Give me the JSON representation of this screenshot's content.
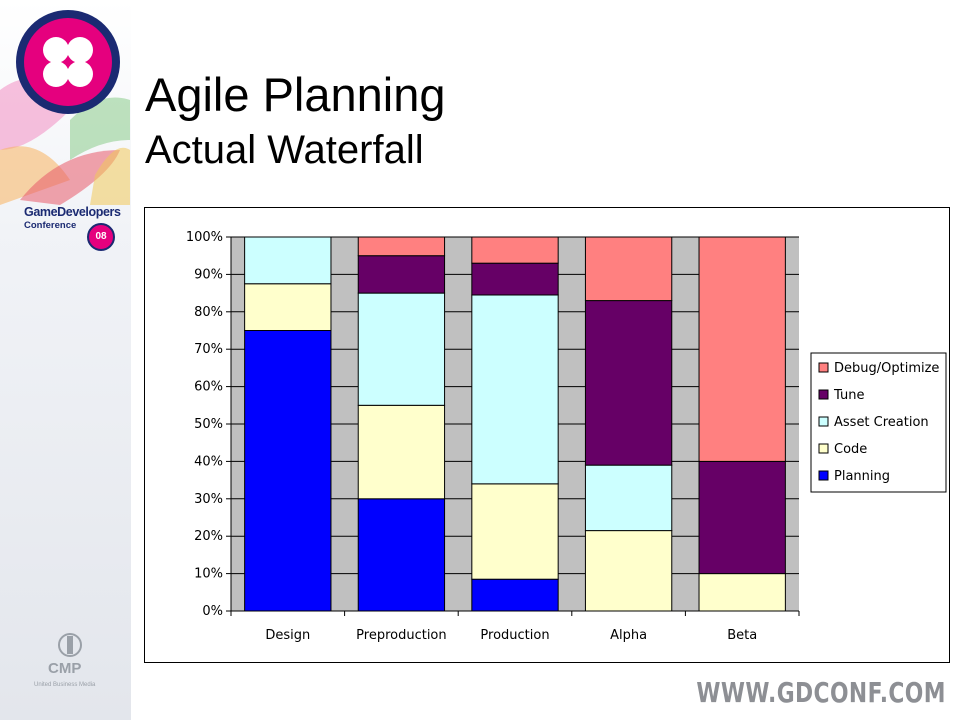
{
  "slide": {
    "title": "Agile Planning",
    "subtitle": "Actual Waterfall"
  },
  "branding": {
    "gdc_name": "GameDevelopers",
    "gdc_conference": "Conference",
    "gdc_year": "08",
    "cmp": "CMP",
    "cmp_sub": "United Business Media",
    "url": "WWW.GDCONF.COM"
  },
  "chart_data": {
    "type": "bar",
    "stacked": "percent",
    "categories": [
      "Design",
      "Preproduction",
      "Production",
      "Alpha",
      "Beta"
    ],
    "series": [
      {
        "name": "Planning",
        "color": "#0000ff",
        "values": [
          75,
          30,
          8.5,
          0,
          0
        ]
      },
      {
        "name": "Code",
        "color": "#ffffcc",
        "values": [
          12.5,
          25,
          25.5,
          21.5,
          10
        ]
      },
      {
        "name": "Asset Creation",
        "color": "#ccffff",
        "values": [
          12.5,
          30,
          50.5,
          17.5,
          0
        ]
      },
      {
        "name": "Tune",
        "color": "#660066",
        "values": [
          0,
          10,
          8.5,
          44,
          30
        ]
      },
      {
        "name": "Debug/Optimize",
        "color": "#ff8080",
        "values": [
          0,
          5,
          7,
          17,
          60
        ]
      }
    ],
    "ylim": [
      0,
      100
    ],
    "yticks": [
      "0%",
      "10%",
      "20%",
      "30%",
      "40%",
      "50%",
      "60%",
      "70%",
      "80%",
      "90%",
      "100%"
    ],
    "grid": true,
    "plot_background": "#c0c0c0",
    "legend_position": "right",
    "xlabel": "",
    "ylabel": ""
  }
}
